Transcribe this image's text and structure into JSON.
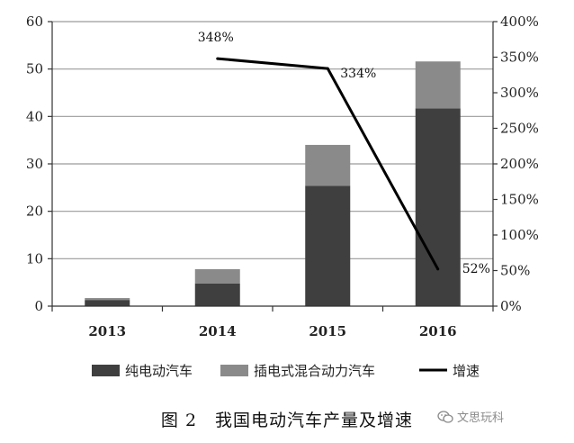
{
  "chart_data": {
    "type": "bar",
    "stacked": true,
    "categories": [
      "2013",
      "2014",
      "2015",
      "2016"
    ],
    "series": [
      {
        "name": "纯电动汽车",
        "values": [
          1.3,
          4.8,
          25.4,
          41.7
        ],
        "color": "#3f3f3f"
      },
      {
        "name": "插电式混合动力汽车",
        "values": [
          0.4,
          3.0,
          8.6,
          9.9
        ],
        "color": "#8a8a8a"
      }
    ],
    "line_series": {
      "name": "增速",
      "axis": "right",
      "categories": [
        "2014",
        "2015",
        "2016"
      ],
      "values": [
        348,
        334,
        52
      ],
      "labels": [
        "348%",
        "334%",
        "52%"
      ],
      "color": "#000000"
    },
    "ylim": [
      0,
      60
    ],
    "yticks": [
      0,
      10,
      20,
      30,
      40,
      50,
      60
    ],
    "y2lim": [
      0,
      400
    ],
    "y2ticks": [
      "0%",
      "50%",
      "100%",
      "150%",
      "200%",
      "250%",
      "300%",
      "350%",
      "400%"
    ],
    "grid": true,
    "legend_position": "bottom"
  },
  "caption": "图 2　我国电动汽车产量及增速",
  "watermark": "文思玩科"
}
